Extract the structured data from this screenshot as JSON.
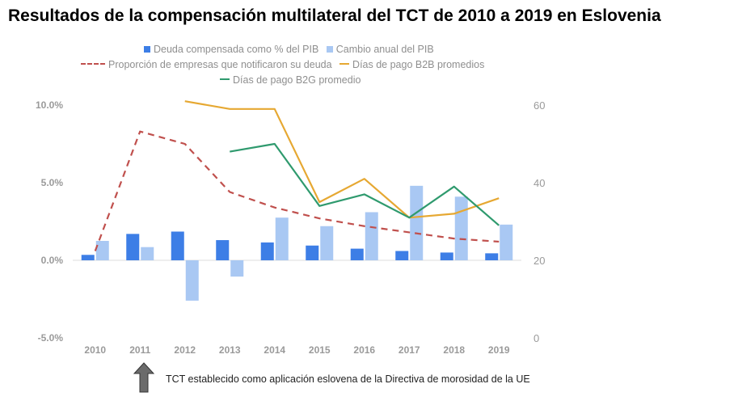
{
  "title": "Resultados de la compensación multilateral del TCT de 2010 a 2019 en Eslovenia",
  "note": "TCT establecido como aplicación eslovena de la Directiva de morosidad de la UE",
  "colors": {
    "debt": "#3d7ee6",
    "gdp": "#a9c8f3",
    "share": "#c0504d",
    "b2b": "#e6a832",
    "b2g": "#2f9a6e",
    "axis": "#9a9a9a"
  },
  "chart_data": {
    "type": "bar+line",
    "categories": [
      "2010",
      "2011",
      "2012",
      "2013",
      "2014",
      "2015",
      "2016",
      "2017",
      "2018",
      "2019"
    ],
    "y_left": {
      "ticks": [
        "-5.0%",
        "0.0%",
        "5.0%",
        "10.0%"
      ],
      "tick_values": [
        -5,
        0,
        5,
        10
      ],
      "range": [
        -5,
        10
      ]
    },
    "y_right": {
      "ticks": [
        "0",
        "20",
        "40",
        "60"
      ],
      "tick_values": [
        0,
        20,
        40,
        60
      ],
      "range": [
        0,
        60
      ]
    },
    "series": [
      {
        "name": "Deuda compensada como % del PIB",
        "kind": "bar",
        "axis": "left",
        "icon": "square-icon",
        "values": [
          0.35,
          1.7,
          1.85,
          1.3,
          1.15,
          0.95,
          0.75,
          0.6,
          0.5,
          0.45
        ]
      },
      {
        "name": "Cambio anual del PIB",
        "kind": "bar",
        "axis": "left",
        "icon": "square-icon",
        "values": [
          1.25,
          0.85,
          -2.6,
          -1.05,
          2.75,
          2.2,
          3.1,
          4.8,
          4.1,
          2.3
        ]
      },
      {
        "name": "Proporción de empresas que notificaron su deuda",
        "kind": "dashed-line",
        "axis": "left",
        "values": [
          0.6,
          8.3,
          7.5,
          4.4,
          3.4,
          2.7,
          2.2,
          1.8,
          1.4,
          1.2
        ]
      },
      {
        "name": "Días de pago B2B promedios",
        "kind": "line",
        "axis": "right",
        "values": [
          null,
          null,
          61,
          59,
          59,
          35,
          41,
          31,
          32,
          36
        ]
      },
      {
        "name": "Días de pago B2G promedio",
        "kind": "line",
        "axis": "right",
        "values": [
          null,
          null,
          null,
          48,
          50,
          34,
          37,
          31,
          39,
          29
        ]
      }
    ],
    "legend_position": "top"
  }
}
